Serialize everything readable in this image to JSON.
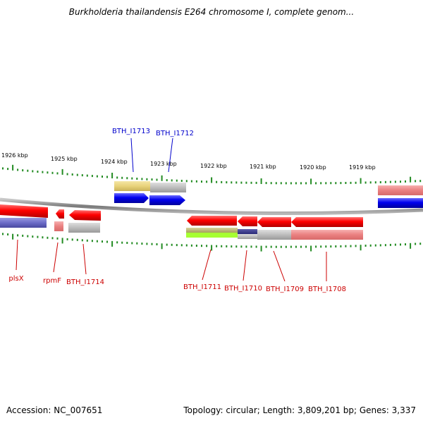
{
  "title": "Burkholderia thailandensis E264 chromosome I, complete genom...",
  "footer": {
    "accession": "Accession: NC_007651",
    "summary": "Topology: circular; Length: 3,809,201 bp; Genes: 3,337"
  },
  "scale_labels": [
    "1926 kbp",
    "1925 kbp",
    "1924 kbp",
    "1923 kbp",
    "1922 kbp",
    "1921 kbp",
    "1920 kbp",
    "1919 kbp"
  ],
  "genes_top": [
    {
      "label": "BTH_I1713",
      "color": "#0000cc"
    },
    {
      "label": "BTH_I1712",
      "color": "#0000cc"
    }
  ],
  "genes_bottom": [
    {
      "label": "plsX",
      "color": "#cc0000"
    },
    {
      "label": "rpmF",
      "color": "#cc0000"
    },
    {
      "label": "BTH_I1714",
      "color": "#cc0000"
    },
    {
      "label": "BTH_I1711",
      "color": "#cc0000"
    },
    {
      "label": "BTH_I1710",
      "color": "#cc0000"
    },
    {
      "label": "BTH_I1709",
      "color": "#cc0000"
    },
    {
      "label": "BTH_I1708",
      "color": "#cc0000"
    }
  ],
  "colors": {
    "forward_gene": "#0000ee",
    "reverse_gene": "#ee0000",
    "tick": "#228b22",
    "backbone": "#8c8c8c"
  }
}
